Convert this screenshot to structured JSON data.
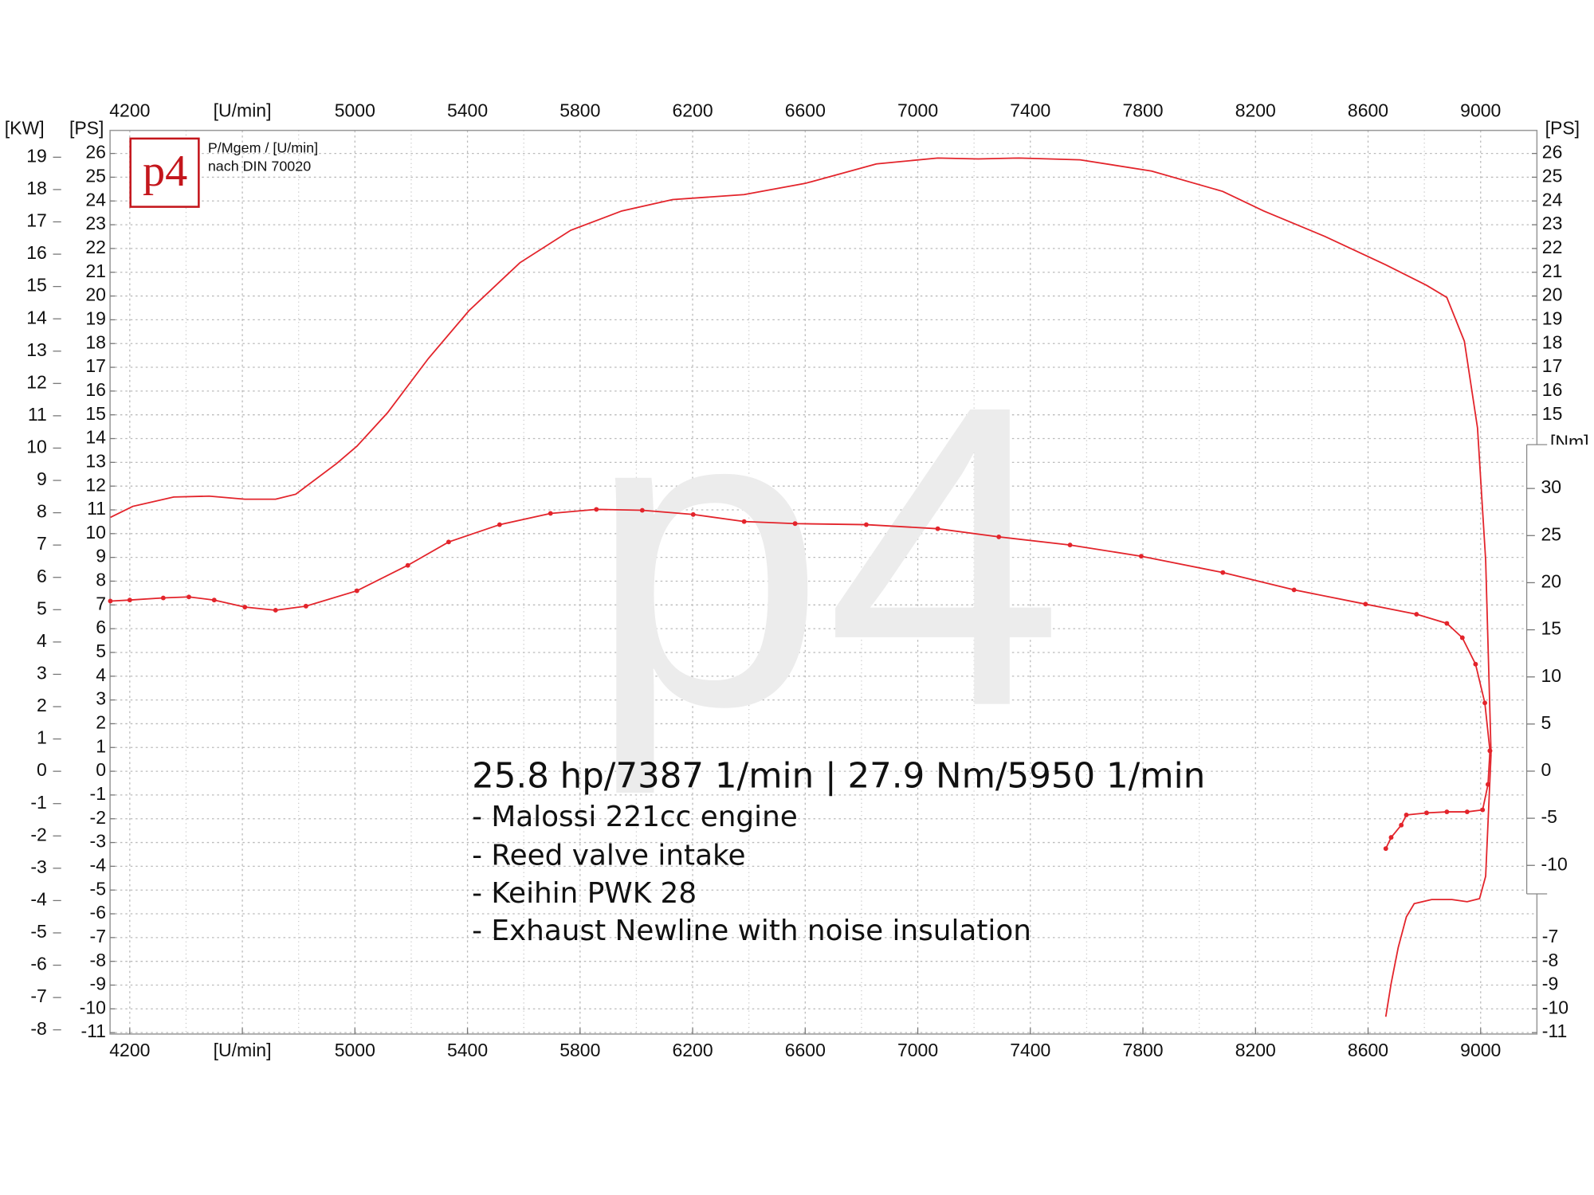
{
  "chart_data": {
    "type": "line",
    "annotation": {
      "headline": "25.8 hp/7387 1/min | 27.9 Nm/5950 1/min",
      "lines": [
        "- Malossi 221cc engine",
        "- Reed valve intake",
        "- Keihin PWK 28",
        "- Exhaust Newline with noise insulation"
      ]
    },
    "subtitle": [
      "P/Mgem / [U/min]",
      "nach DIN 70020"
    ],
    "logo": "p4",
    "watermark": "p4",
    "grid": true,
    "xlim": [
      4130,
      9200
    ],
    "xticks": [
      4200,
      {
        "value": 4600,
        "label": "[U/min]"
      },
      5000,
      5400,
      5800,
      6200,
      6600,
      7000,
      7400,
      7800,
      8200,
      8600,
      9000
    ],
    "ylabel": "[PS]",
    "ylim": [
      -11.06,
      26.97
    ],
    "yticks": [
      -11,
      -10,
      -9,
      -8,
      -7,
      -6,
      -5,
      -4,
      -3,
      -2,
      -1,
      0,
      1,
      2,
      3,
      4,
      5,
      6,
      7,
      8,
      9,
      10,
      11,
      12,
      13,
      14,
      15,
      16,
      17,
      18,
      19,
      20,
      21,
      22,
      23,
      24,
      25,
      26
    ],
    "y_right_label": "[PS]",
    "y_right_ticks": [
      -11,
      -10,
      -9,
      -8,
      -7,
      15,
      16,
      17,
      18,
      19,
      20,
      21,
      22,
      23,
      24,
      25,
      26
    ],
    "y2label": "[KW]",
    "y2lim": [
      -8.13,
      19.83
    ],
    "y2ticks": [
      -8,
      -7,
      -6,
      -5,
      -4,
      -3,
      -2,
      -1,
      0,
      1,
      2,
      3,
      4,
      5,
      6,
      7,
      8,
      9,
      10,
      11,
      12,
      13,
      14,
      15,
      16,
      17,
      18,
      19
    ],
    "y3label": "[Nm]",
    "y3lim": [
      -27.9,
      68
    ],
    "y3ticks": [
      -10,
      -5,
      0,
      5,
      10,
      15,
      20,
      25,
      30
    ],
    "series": [
      {
        "color": "#e3242b",
        "axis": "y",
        "markers": false,
        "x": [
          4131,
          4211,
          4356,
          4482,
          4609,
          4718,
          4790,
          4935,
          5007,
          5116,
          5261,
          5405,
          5586,
          5767,
          5948,
          6129,
          6383,
          6600,
          6853,
          7071,
          7215,
          7360,
          7577,
          7831,
          8084,
          8229,
          8446,
          8663,
          8808,
          8880,
          8942,
          8989,
          9018,
          9033,
          9037
        ],
        "values": [
          10.68,
          11.15,
          11.54,
          11.58,
          11.45,
          11.45,
          11.66,
          12.95,
          13.68,
          15.09,
          17.37,
          19.38,
          21.4,
          22.77,
          23.58,
          24.06,
          24.27,
          24.74,
          25.56,
          25.81,
          25.77,
          25.81,
          25.73,
          25.26,
          24.4,
          23.58,
          22.51,
          21.31,
          20.45,
          19.94,
          18.1,
          14.45,
          8.88,
          2.44,
          0.73
        ]
      },
      {
        "color": "#e3242b",
        "axis": "y",
        "markers": false,
        "x": [
          9037,
          9018,
          8996,
          8952,
          8898,
          8826,
          8764,
          8736,
          8707,
          8682,
          8663
        ],
        "values": [
          0.73,
          -4.42,
          -5.36,
          -5.49,
          -5.4,
          -5.4,
          -5.57,
          -6.13,
          -7.42,
          -8.92,
          -10.33
        ]
      },
      {
        "color": "#e3242b",
        "axis": "y3",
        "markers": true,
        "x": [
          4131,
          4200,
          4319,
          4410,
          4500,
          4609,
          4718,
          4826,
          5007,
          5188,
          5333,
          5514,
          5695,
          5858,
          6021,
          6202,
          6383,
          6564,
          6817,
          7071,
          7288,
          7541,
          7794,
          8084,
          8337,
          8591,
          8772,
          8880,
          8935,
          8982,
          9015,
          9033
        ],
        "values": [
          18.05,
          18.16,
          18.38,
          18.49,
          18.16,
          17.41,
          17.08,
          17.51,
          19.14,
          21.84,
          24.32,
          26.16,
          27.35,
          27.78,
          27.68,
          27.24,
          26.49,
          26.27,
          26.16,
          25.73,
          24.86,
          24.0,
          22.81,
          21.08,
          19.24,
          17.73,
          16.65,
          15.68,
          14.16,
          11.35,
          7.24,
          2.16
        ]
      },
      {
        "color": "#e3242b",
        "axis": "y3",
        "markers": true,
        "x": [
          9033,
          9026,
          9007,
          8952,
          8880,
          8808,
          8736,
          8718,
          8682,
          8663
        ],
        "values": [
          2.16,
          -1.41,
          -4.11,
          -4.32,
          -4.32,
          -4.43,
          -4.65,
          -5.73,
          -7.03,
          -8.22
        ]
      }
    ]
  }
}
